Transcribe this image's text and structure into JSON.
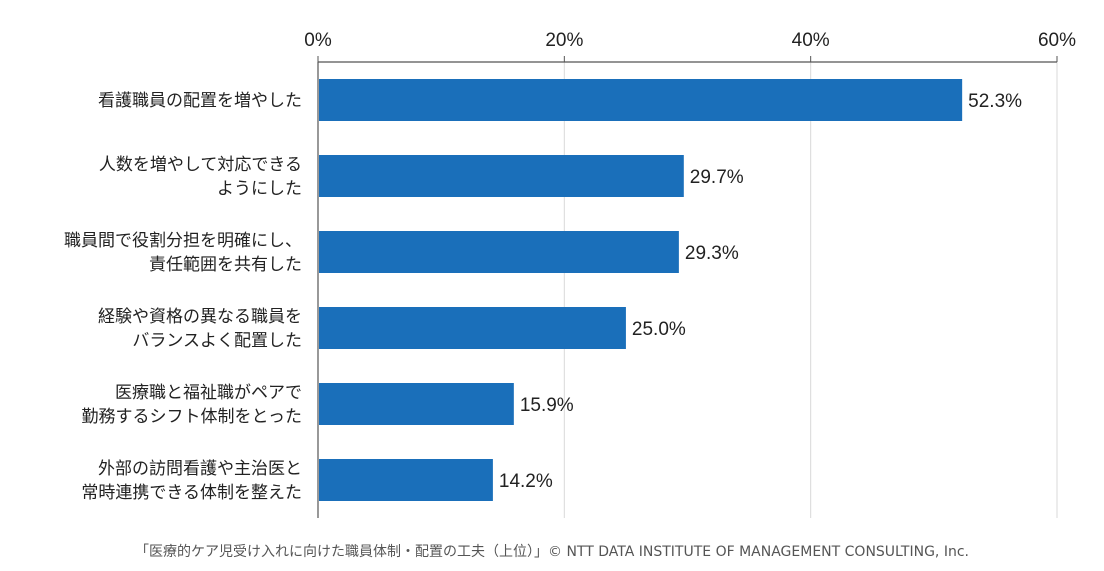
{
  "chart_data": {
    "type": "bar",
    "orientation": "horizontal",
    "categories": [
      [
        "看護職員の配置を増やした"
      ],
      [
        "人数を増やして対応できる",
        "ようにした"
      ],
      [
        "職員間で役割分担を明確にし、",
        "責任範囲を共有した"
      ],
      [
        "経験や資格の異なる職員を",
        "バランスよく配置した"
      ],
      [
        "医療職と福祉職がペアで",
        "勤務するシフト体制をとった"
      ],
      [
        "外部の訪問看護や主治医と",
        "常時連携できる体制を整えた"
      ]
    ],
    "values": [
      52.3,
      29.7,
      29.3,
      25.0,
      15.9,
      14.2
    ],
    "value_labels": [
      "52.3%",
      "29.7%",
      "29.3%",
      "25.0%",
      "15.9%",
      "14.2%"
    ],
    "xlim": [
      0,
      60
    ],
    "xticks": [
      0,
      20,
      40,
      60
    ],
    "xtick_labels": [
      "0%",
      "20%",
      "40%",
      "60%"
    ],
    "axis_position": "top",
    "grid": true,
    "bar_color": "#1a6fba",
    "grid_color": "#d9d9d9"
  },
  "caption": "「医療的ケア児受け入れに向けた職員体制・配置の工夫（上位）」© NTT DATA INSTITUTE OF MANAGEMENT CONSULTING, Inc."
}
